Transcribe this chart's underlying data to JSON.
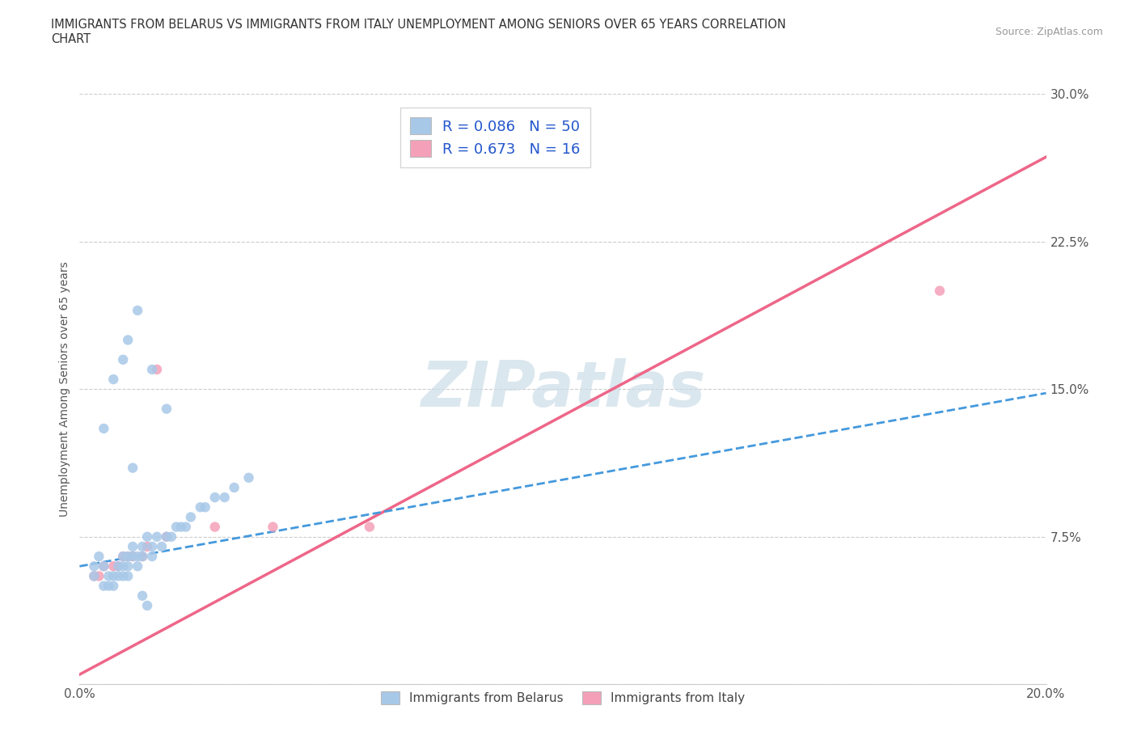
{
  "title_line1": "IMMIGRANTS FROM BELARUS VS IMMIGRANTS FROM ITALY UNEMPLOYMENT AMONG SENIORS OVER 65 YEARS CORRELATION",
  "title_line2": "CHART",
  "source": "Source: ZipAtlas.com",
  "ylabel": "Unemployment Among Seniors over 65 years",
  "xlim": [
    0.0,
    0.2
  ],
  "ylim": [
    0.0,
    0.3
  ],
  "belarus_color": "#a8c8e8",
  "italy_color": "#f4a0b8",
  "belarus_line_color": "#4499dd",
  "italy_line_color": "#ee6688",
  "R_belarus": 0.086,
  "N_belarus": 50,
  "R_italy": 0.673,
  "N_italy": 16,
  "watermark": "ZIPatlas",
  "watermark_color": "#ccdde8",
  "legend_belarus": "Immigrants from Belarus",
  "legend_italy": "Immigrants from Italy",
  "belarus_scatter_x": [
    0.003,
    0.003,
    0.004,
    0.005,
    0.005,
    0.006,
    0.006,
    0.007,
    0.007,
    0.008,
    0.008,
    0.009,
    0.009,
    0.009,
    0.01,
    0.01,
    0.01,
    0.011,
    0.011,
    0.012,
    0.012,
    0.013,
    0.013,
    0.014,
    0.015,
    0.015,
    0.016,
    0.017,
    0.018,
    0.019,
    0.02,
    0.021,
    0.022,
    0.023,
    0.025,
    0.026,
    0.028,
    0.03,
    0.032,
    0.035,
    0.012,
    0.015,
    0.018,
    0.005,
    0.007,
    0.009,
    0.01,
    0.011,
    0.013,
    0.014
  ],
  "belarus_scatter_y": [
    0.06,
    0.055,
    0.065,
    0.06,
    0.05,
    0.055,
    0.05,
    0.055,
    0.05,
    0.06,
    0.055,
    0.065,
    0.06,
    0.055,
    0.065,
    0.06,
    0.055,
    0.07,
    0.065,
    0.065,
    0.06,
    0.07,
    0.065,
    0.075,
    0.07,
    0.065,
    0.075,
    0.07,
    0.075,
    0.075,
    0.08,
    0.08,
    0.08,
    0.085,
    0.09,
    0.09,
    0.095,
    0.095,
    0.1,
    0.105,
    0.19,
    0.16,
    0.14,
    0.13,
    0.155,
    0.165,
    0.175,
    0.11,
    0.045,
    0.04
  ],
  "italy_scatter_x": [
    0.003,
    0.004,
    0.005,
    0.007,
    0.008,
    0.009,
    0.01,
    0.011,
    0.013,
    0.014,
    0.016,
    0.018,
    0.028,
    0.04,
    0.06,
    0.178
  ],
  "italy_scatter_y": [
    0.055,
    0.055,
    0.06,
    0.06,
    0.06,
    0.065,
    0.065,
    0.065,
    0.065,
    0.07,
    0.16,
    0.075,
    0.08,
    0.08,
    0.08,
    0.2
  ],
  "belarus_trendline_x": [
    0.0,
    0.2
  ],
  "belarus_trendline_y": [
    0.06,
    0.148
  ],
  "italy_trendline_x": [
    0.0,
    0.2
  ],
  "italy_trendline_y": [
    0.005,
    0.268
  ]
}
